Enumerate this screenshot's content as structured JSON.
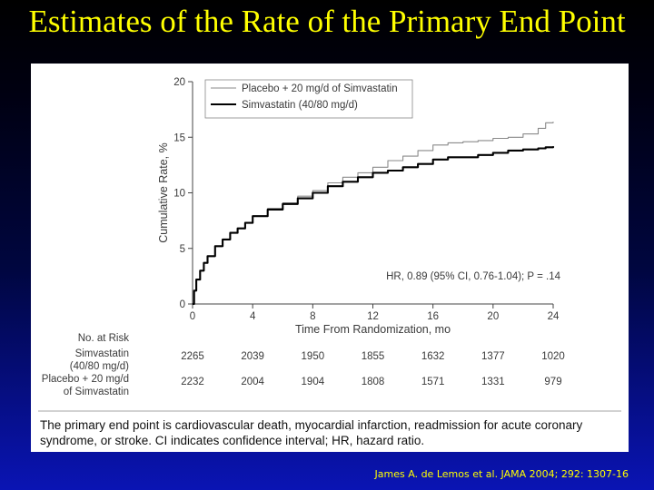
{
  "slide": {
    "title": "Estimates of the Rate of the Primary End Point",
    "citation": "James A. de Lemos et al. JAMA 2004; 292: 1307-16"
  },
  "caption": "The primary end point is cardiovascular death, myocardial infarction, readmission for acute coronary syndrome, or stroke. CI indicates confidence interval; HR, hazard ratio.",
  "chart_data": {
    "type": "line",
    "xlabel": "Time From Randomization, mo",
    "ylabel": "Cumulative Rate, %",
    "xlim": [
      0,
      24
    ],
    "ylim": [
      0,
      20
    ],
    "xticks": [
      0,
      4,
      8,
      12,
      16,
      20,
      24
    ],
    "yticks": [
      0,
      5,
      10,
      15,
      20
    ],
    "grid": false,
    "legend_position": "top-left",
    "annotation": "HR, 0.89 (95% CI, 0.76-1.04); P = .14",
    "series": [
      {
        "name": "Placebo + 20 mg/d of Simvastatin",
        "color": "#8a8a8a",
        "x": [
          0,
          0.1,
          0.25,
          0.5,
          0.75,
          1,
          1.5,
          2,
          2.5,
          3,
          3.5,
          4,
          5,
          6,
          7,
          8,
          9,
          10,
          11,
          12,
          13,
          14,
          15,
          16,
          17,
          18,
          19,
          20,
          21,
          22,
          23,
          23.5,
          24
        ],
        "values": [
          0,
          1.2,
          2.2,
          3.0,
          3.7,
          4.3,
          5.2,
          5.8,
          6.4,
          6.8,
          7.3,
          7.9,
          8.6,
          9.1,
          9.7,
          10.2,
          10.9,
          11.4,
          11.8,
          12.3,
          12.9,
          13.3,
          13.8,
          14.3,
          14.5,
          14.6,
          14.7,
          14.9,
          15.0,
          15.3,
          15.8,
          16.3,
          16.4
        ]
      },
      {
        "name": "Simvastatin (40/80 mg/d)",
        "color": "#000000",
        "x": [
          0,
          0.1,
          0.25,
          0.5,
          0.75,
          1,
          1.5,
          2,
          2.5,
          3,
          3.5,
          4,
          5,
          6,
          7,
          8,
          9,
          10,
          11,
          12,
          13,
          14,
          15,
          16,
          17,
          18,
          19,
          20,
          21,
          22,
          23,
          23.5,
          24
        ],
        "values": [
          0,
          1.2,
          2.2,
          3.0,
          3.7,
          4.3,
          5.2,
          5.8,
          6.4,
          6.8,
          7.3,
          7.9,
          8.5,
          9.0,
          9.5,
          10.0,
          10.6,
          11.0,
          11.4,
          11.8,
          12.0,
          12.3,
          12.6,
          13.0,
          13.2,
          13.2,
          13.4,
          13.6,
          13.8,
          13.9,
          14.0,
          14.1,
          14.2
        ]
      }
    ],
    "at_risk": {
      "title": "No. at Risk",
      "rows": [
        {
          "label_lines": [
            "Simvastatin",
            "(40/80 mg/d)"
          ],
          "values": [
            "2265",
            "2039",
            "1950",
            "1855",
            "1632",
            "1377",
            "1020"
          ]
        },
        {
          "label_lines": [
            "Placebo + 20 mg/d",
            "of Simvastatin"
          ],
          "values": [
            "2232",
            "2004",
            "1904",
            "1808",
            "1571",
            "1331",
            "979"
          ]
        }
      ]
    }
  }
}
